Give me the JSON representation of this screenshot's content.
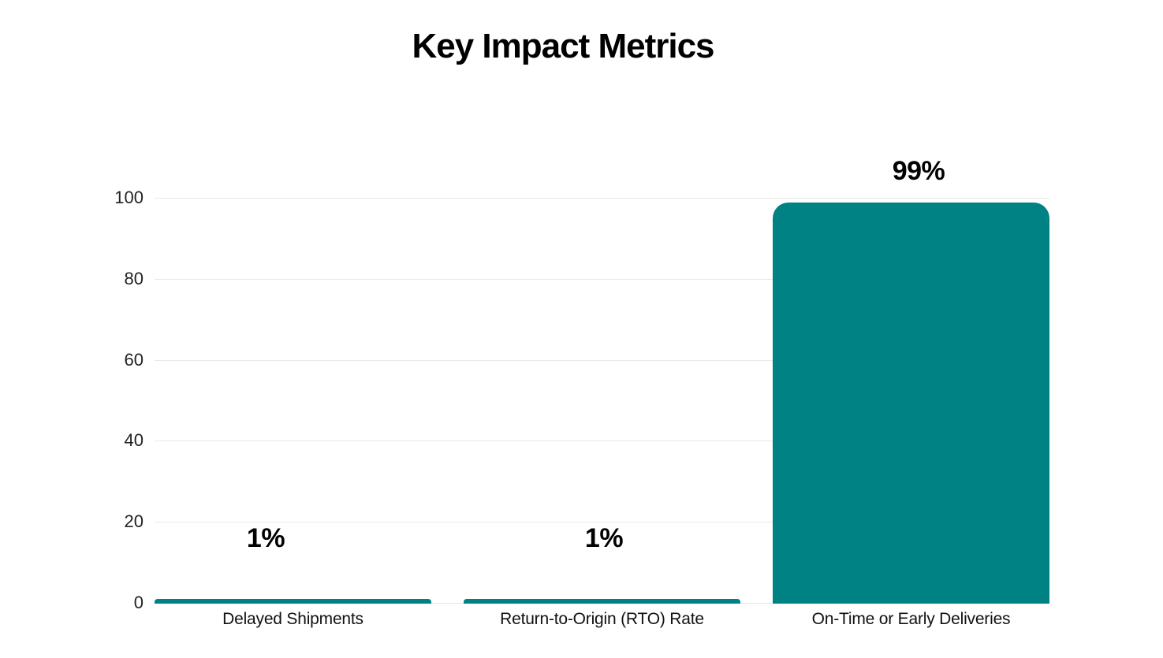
{
  "page": {
    "background_color": "#ffffff"
  },
  "chart_data": {
    "type": "bar",
    "title": "Key Impact Metrics",
    "categories": [
      "Delayed Shipments",
      "Return-to-Origin (RTO) Rate",
      "On-Time or Early Deliveries"
    ],
    "values": [
      1,
      1,
      99
    ],
    "data_labels": [
      "1%",
      "1%",
      "99%"
    ],
    "xlabel": "",
    "ylabel": "",
    "ylim": [
      0,
      100
    ],
    "yticks": [
      0,
      20,
      40,
      60,
      80,
      100
    ],
    "grid": "horizontal",
    "legend_position": "none",
    "bar_color": "#008183",
    "gridline_color": "#e8e8e8",
    "title_color": "#000000",
    "data_label_color": "#000000",
    "axis_tick_color": "#222222",
    "category_label_color": "#111111"
  }
}
